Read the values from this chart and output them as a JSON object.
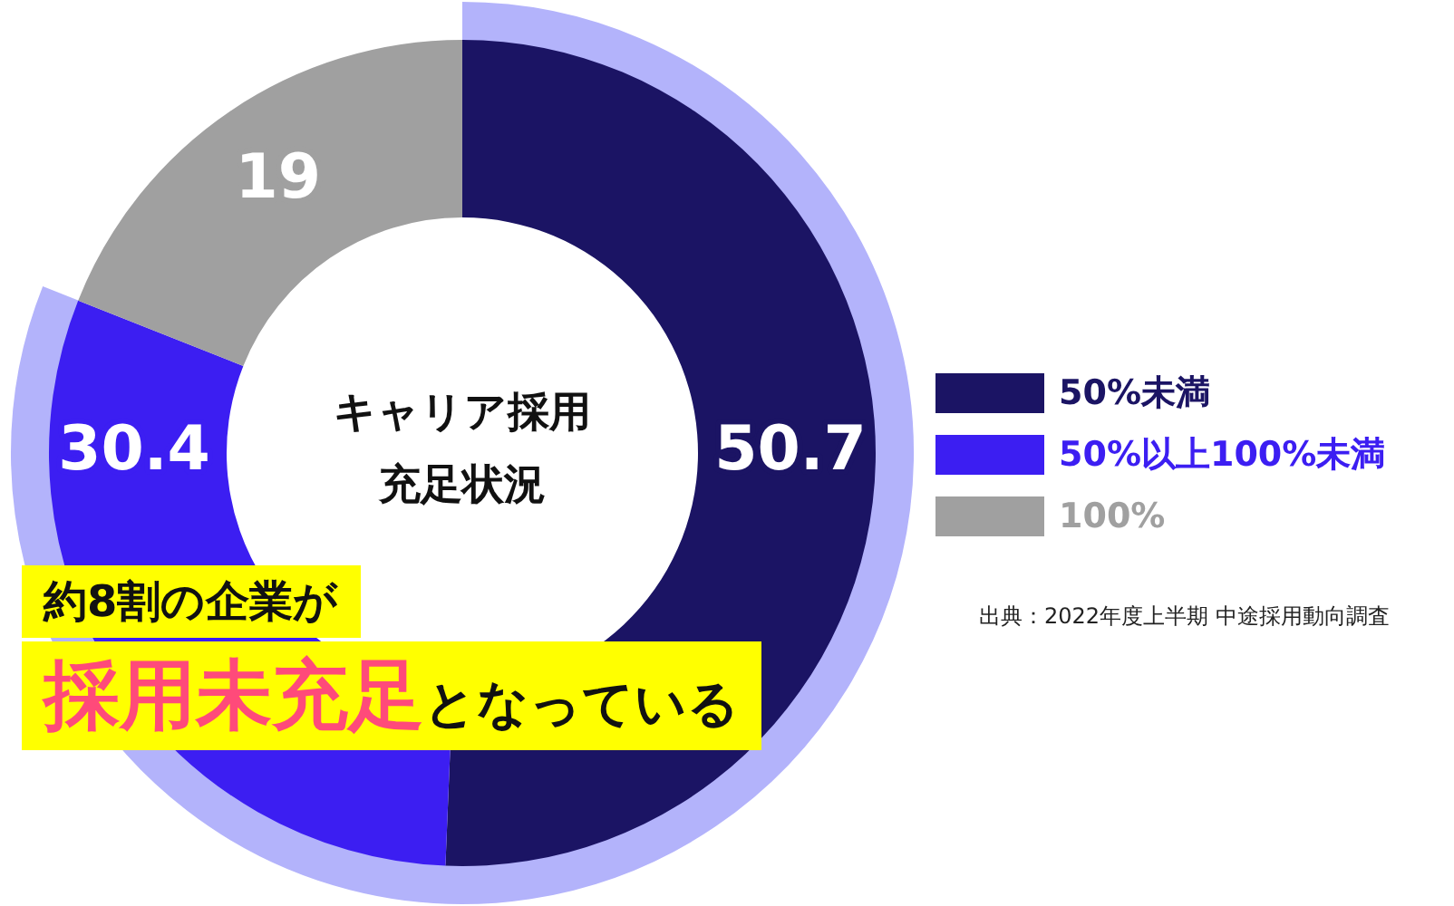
{
  "chart_data": {
    "type": "donut",
    "title": "キャリア採用充足状況",
    "categories": [
      "50%未満",
      "50%以上100%未満",
      "100%"
    ],
    "values": [
      50.7,
      30.4,
      19
    ],
    "colors": [
      "#1b1464",
      "#3c1ef2",
      "#a0a0a0"
    ],
    "data_labels": true,
    "legend": "right",
    "annotations": [
      "約8割の企業が",
      "採用未充足",
      "となっている",
      "出典：2022年度上半期 中途採用動向調査"
    ]
  }
}
